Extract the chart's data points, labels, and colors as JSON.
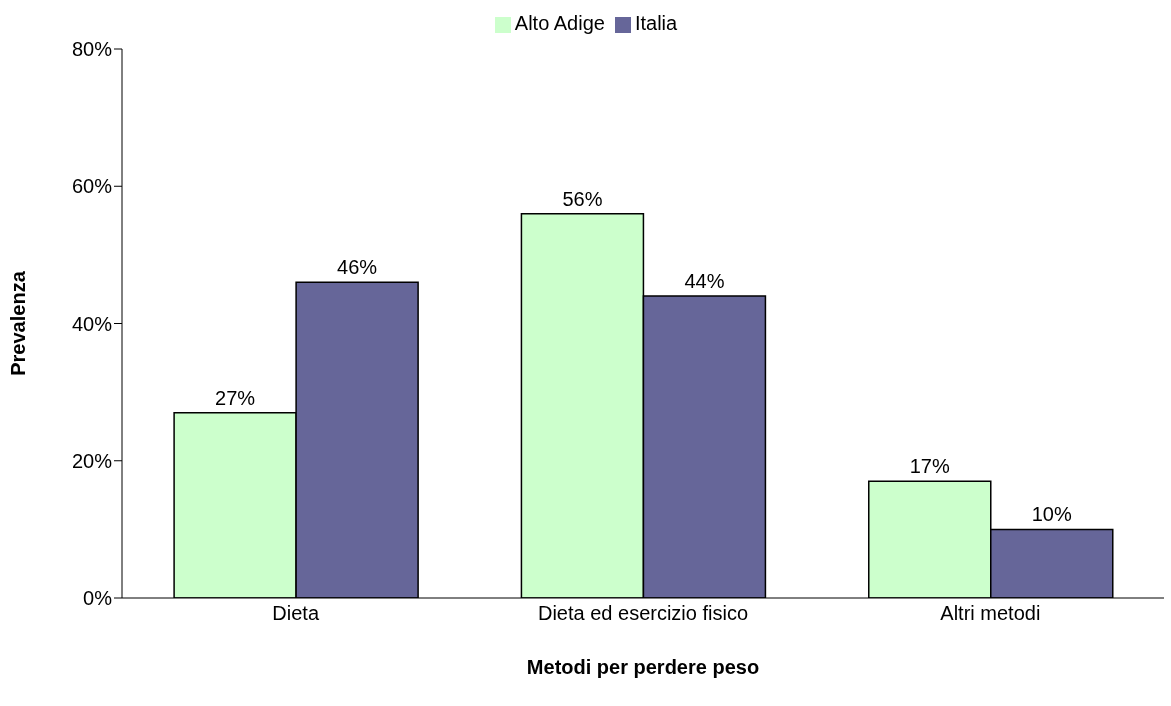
{
  "chart_data": {
    "type": "bar",
    "categories": [
      "Dieta",
      "Dieta ed esercizio fisico",
      "Altri metodi"
    ],
    "series": [
      {
        "name": "Alto Adige",
        "color": "#ccffcc",
        "values": [
          27,
          56,
          17
        ],
        "value_labels": [
          "27%",
          "56%",
          "17%"
        ]
      },
      {
        "name": "Italia",
        "color": "#666699",
        "values": [
          46,
          44,
          10
        ],
        "value_labels": [
          "46%",
          "44%",
          "10%"
        ]
      }
    ],
    "xlabel": "Metodi per perdere peso",
    "ylabel": "Prevalenza",
    "ylim": [
      0,
      80
    ],
    "yticks": [
      {
        "value": 0,
        "label": "0%"
      },
      {
        "value": 20,
        "label": "20%"
      },
      {
        "value": 40,
        "label": "40%"
      },
      {
        "value": 60,
        "label": "60%"
      },
      {
        "value": 80,
        "label": "80%"
      }
    ],
    "grid": false,
    "legend": "top"
  }
}
